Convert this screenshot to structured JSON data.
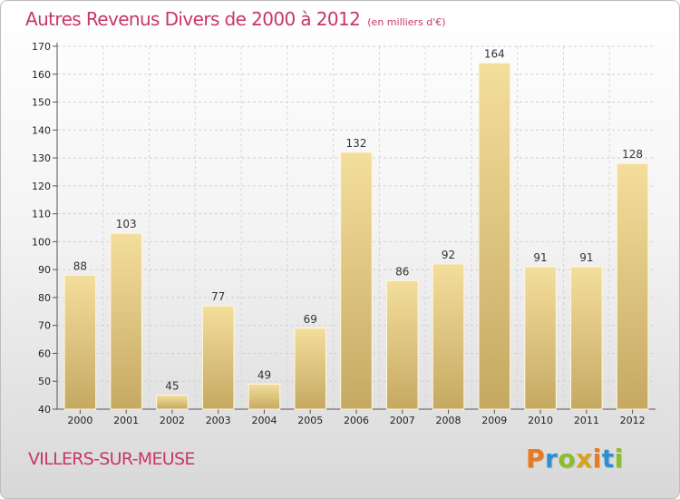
{
  "header": {
    "title": "Autres Revenus Divers de 2000 à 2012",
    "subtitle": "(en milliers d'€)"
  },
  "footer": {
    "place": "VILLERS-SUR-MEUSE",
    "logo": [
      "P",
      "r",
      "o",
      "x",
      "i",
      "t",
      "i"
    ]
  },
  "colors": {
    "accent": "#c8366b",
    "bar_light": "#f4de9c",
    "bar_dark": "#c5a962",
    "logo": [
      "#e8791e",
      "#2e8fd0",
      "#8bbf2a",
      "#d8a21a",
      "#e8791e",
      "#2e8fd0",
      "#8bbf2a"
    ]
  },
  "chart_data": {
    "type": "bar",
    "categories": [
      "2000",
      "2001",
      "2002",
      "2003",
      "2004",
      "2005",
      "2006",
      "2007",
      "2008",
      "2009",
      "2010",
      "2011",
      "2012"
    ],
    "values": [
      88,
      103,
      45,
      77,
      49,
      69,
      132,
      86,
      92,
      164,
      91,
      91,
      128
    ],
    "title": "Autres Revenus Divers de 2000 à 2012",
    "subtitle": "(en milliers d'€)",
    "ylim": [
      40,
      170
    ],
    "yticks": [
      40,
      50,
      60,
      70,
      80,
      90,
      100,
      110,
      120,
      130,
      140,
      150,
      160,
      170
    ],
    "grid": true,
    "data_labels": true
  }
}
